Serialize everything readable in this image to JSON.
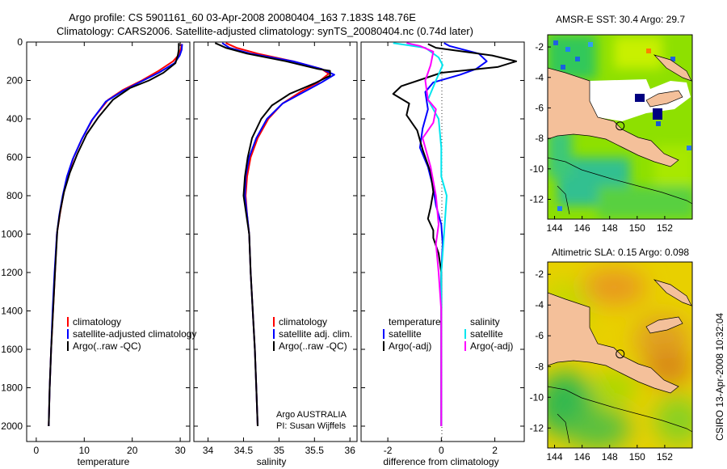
{
  "header": {
    "line1": "Argo profile: CS 5901161_60 03-Apr-2008 20080404_163 7.183S 148.76E",
    "line2": "Climatology: CARS2006. Satellite-adjusted climatology: synTS_20080404.nc (0.74d later)"
  },
  "credit": "CSIRO 13-Apr-2008 10:32:04",
  "colors": {
    "climatology": "#ff0000",
    "satellite": "#0000ff",
    "argo": "#000000",
    "sal_satellite": "#00e5ee",
    "sal_argo": "#ff00ff",
    "land": "#f4c09a"
  },
  "chart_data": [
    {
      "type": "line",
      "id": "temperature",
      "xlabel": "temperature",
      "xlim": [
        -2,
        32
      ],
      "ylim": [
        2080,
        0
      ],
      "xticks": [
        0,
        10,
        20,
        30
      ],
      "yticks": [
        0,
        200,
        400,
        600,
        800,
        1000,
        1200,
        1400,
        1600,
        1800,
        2000
      ],
      "legend": [
        "climatology",
        "satellite-adjusted climatology",
        "Argo(..raw -QC)"
      ],
      "series": [
        {
          "name": "climatology",
          "color": "#ff0000",
          "points": [
            [
              30.3,
              10
            ],
            [
              30.1,
              40
            ],
            [
              29.6,
              70
            ],
            [
              28.5,
              100
            ],
            [
              25.5,
              150
            ],
            [
              22,
              200
            ],
            [
              18,
              250
            ],
            [
              15,
              300
            ],
            [
              11.8,
              400
            ],
            [
              9.6,
              500
            ],
            [
              7.8,
              600
            ],
            [
              6.5,
              700
            ],
            [
              5.6,
              800
            ],
            [
              4.9,
              900
            ],
            [
              4.3,
              1000
            ],
            [
              3.9,
              1200
            ],
            [
              3.5,
              1400
            ],
            [
              3.1,
              1600
            ],
            [
              2.8,
              1800
            ],
            [
              2.6,
              2000
            ]
          ]
        },
        {
          "name": "satellite-adjusted climatology",
          "color": "#0000ff",
          "points": [
            [
              30.4,
              10
            ],
            [
              30.3,
              40
            ],
            [
              29.9,
              70
            ],
            [
              28.8,
              110
            ],
            [
              25.5,
              160
            ],
            [
              21.5,
              210
            ],
            [
              18,
              255
            ],
            [
              14.5,
              310
            ],
            [
              11.5,
              410
            ],
            [
              9.4,
              510
            ],
            [
              7.6,
              610
            ],
            [
              6.4,
              700
            ],
            [
              5.5,
              800
            ],
            [
              4.8,
              900
            ],
            [
              4.3,
              1000
            ],
            [
              3.8,
              1200
            ],
            [
              3.4,
              1400
            ],
            [
              3.1,
              1600
            ],
            [
              2.8,
              1800
            ],
            [
              2.6,
              2000
            ]
          ]
        },
        {
          "name": "Argo(..raw -QC)",
          "color": "#000000",
          "points": [
            [
              29.7,
              5
            ],
            [
              29.7,
              40
            ],
            [
              29.5,
              70
            ],
            [
              29,
              110
            ],
            [
              26.5,
              160
            ],
            [
              23.5,
              200
            ],
            [
              19.5,
              240
            ],
            [
              16,
              300
            ],
            [
              13,
              390
            ],
            [
              10.5,
              480
            ],
            [
              8.6,
              580
            ],
            [
              7,
              680
            ],
            [
              5.8,
              780
            ],
            [
              5,
              880
            ],
            [
              4.4,
              980
            ],
            [
              3.9,
              1200
            ],
            [
              3.5,
              1400
            ],
            [
              3.1,
              1600
            ],
            [
              2.8,
              1800
            ],
            [
              2.6,
              2000
            ]
          ]
        }
      ]
    },
    {
      "type": "line",
      "id": "salinity",
      "xlabel": "salinity",
      "xlim": [
        33.8,
        36.1
      ],
      "ylim": [
        2080,
        0
      ],
      "xticks": [
        34,
        34.5,
        35,
        35.5,
        36
      ],
      "legend": [
        "climatology",
        "satellite adj. clim.",
        "Argo(..raw -QC)"
      ],
      "annotations": [
        "Argo AUSTRALIA",
        "PI: Susan Wijffels"
      ],
      "series": [
        {
          "name": "climatology",
          "color": "#ff0000",
          "points": [
            [
              34.25,
              5
            ],
            [
              34.4,
              30
            ],
            [
              34.7,
              60
            ],
            [
              35.2,
              100
            ],
            [
              35.6,
              140
            ],
            [
              35.7,
              165
            ],
            [
              35.55,
              210
            ],
            [
              35.3,
              260
            ],
            [
              35.05,
              320
            ],
            [
              34.85,
              400
            ],
            [
              34.7,
              500
            ],
            [
              34.6,
              600
            ],
            [
              34.55,
              700
            ],
            [
              34.53,
              800
            ],
            [
              34.55,
              900
            ],
            [
              34.58,
              1000
            ],
            [
              34.6,
              1200
            ],
            [
              34.63,
              1400
            ],
            [
              34.66,
              1600
            ],
            [
              34.68,
              1800
            ],
            [
              34.7,
              2000
            ]
          ]
        },
        {
          "name": "satellite adj. clim.",
          "color": "#0000ff",
          "points": [
            [
              34.2,
              5
            ],
            [
              34.3,
              30
            ],
            [
              34.6,
              60
            ],
            [
              35.2,
              100
            ],
            [
              35.6,
              140
            ],
            [
              35.78,
              170
            ],
            [
              35.6,
              210
            ],
            [
              35.35,
              260
            ],
            [
              35.05,
              320
            ],
            [
              34.83,
              400
            ],
            [
              34.68,
              500
            ],
            [
              34.58,
              600
            ],
            [
              34.53,
              700
            ],
            [
              34.52,
              800
            ],
            [
              34.55,
              900
            ],
            [
              34.58,
              1000
            ],
            [
              34.6,
              1200
            ],
            [
              34.63,
              1400
            ],
            [
              34.66,
              1600
            ],
            [
              34.68,
              1800
            ],
            [
              34.7,
              2000
            ]
          ]
        },
        {
          "name": "Argo(..raw -QC)",
          "color": "#000000",
          "points": [
            [
              34.1,
              5
            ],
            [
              34.25,
              30
            ],
            [
              34.55,
              60
            ],
            [
              35.1,
              100
            ],
            [
              35.55,
              140
            ],
            [
              35.72,
              150
            ],
            [
              35.72,
              175
            ],
            [
              35.5,
              215
            ],
            [
              35.15,
              270
            ],
            [
              34.9,
              330
            ],
            [
              34.75,
              400
            ],
            [
              34.62,
              500
            ],
            [
              34.56,
              600
            ],
            [
              34.52,
              700
            ],
            [
              34.5,
              800
            ],
            [
              34.54,
              900
            ],
            [
              34.58,
              1000
            ],
            [
              34.6,
              1200
            ],
            [
              34.63,
              1400
            ],
            [
              34.66,
              1600
            ],
            [
              34.68,
              1800
            ],
            [
              34.7,
              2000
            ]
          ]
        }
      ]
    },
    {
      "type": "line",
      "id": "difference",
      "xlabel": "difference from climatology",
      "xlim": [
        -3,
        3.1
      ],
      "ylim": [
        2080,
        0
      ],
      "xticks": [
        -2,
        0,
        2
      ],
      "legend_temperature_title": "temperature",
      "legend_salinity_title": "salinity",
      "legend": [
        "satellite",
        "Argo(-adj)",
        "satellite",
        "Argo(-adj)"
      ],
      "series": [
        {
          "name": "temperature satellite",
          "color": "#0000ff",
          "points": [
            [
              0.1,
              5
            ],
            [
              0.3,
              20
            ],
            [
              1.4,
              60
            ],
            [
              1.7,
              100
            ],
            [
              1.3,
              140
            ],
            [
              0.7,
              170
            ],
            [
              -0.3,
              210
            ],
            [
              -0.6,
              260
            ],
            [
              -0.5,
              350
            ],
            [
              -0.7,
              450
            ],
            [
              -0.8,
              550
            ],
            [
              -0.5,
              650
            ],
            [
              -0.3,
              760
            ],
            [
              -0.2,
              850
            ],
            [
              0,
              950
            ],
            [
              0.05,
              1050
            ],
            [
              0,
              1200
            ],
            [
              0,
              1500
            ],
            [
              0,
              2000
            ]
          ]
        },
        {
          "name": "temperature Argo(-adj)",
          "color": "#000000",
          "points": [
            [
              -0.5,
              10
            ],
            [
              -0.2,
              30
            ],
            [
              1.9,
              70
            ],
            [
              2.8,
              100
            ],
            [
              2.1,
              130
            ],
            [
              0,
              160
            ],
            [
              -1.5,
              230
            ],
            [
              -1.8,
              270
            ],
            [
              -1.2,
              320
            ],
            [
              -1.3,
              380
            ],
            [
              -0.9,
              460
            ],
            [
              -0.7,
              560
            ],
            [
              -0.4,
              680
            ],
            [
              -0.3,
              780
            ],
            [
              -0.4,
              860
            ],
            [
              -0.5,
              920
            ],
            [
              -0.3,
              980
            ],
            [
              -0.3,
              1020
            ],
            [
              -0.1,
              1100
            ],
            [
              0,
              1200
            ],
            [
              0,
              1500
            ],
            [
              0,
              2000
            ]
          ]
        },
        {
          "name": "salinity satellite",
          "color": "#00e5ee",
          "points": [
            [
              -1.8,
              5
            ],
            [
              -0.6,
              30
            ],
            [
              -0.1,
              80
            ],
            [
              0.05,
              120
            ],
            [
              -0.2,
              200
            ],
            [
              -0.5,
              300
            ],
            [
              -0.1,
              400
            ],
            [
              0,
              550
            ],
            [
              0,
              700
            ],
            [
              0.2,
              800
            ],
            [
              0.1,
              1000
            ],
            [
              0,
              1200
            ],
            [
              0,
              1500
            ],
            [
              0,
              2000
            ]
          ]
        },
        {
          "name": "salinity Argo(-adj)",
          "color": "#ff00ff",
          "points": [
            [
              -1.3,
              5
            ],
            [
              -0.8,
              20
            ],
            [
              -0.3,
              50
            ],
            [
              -0.4,
              120
            ],
            [
              -0.6,
              200
            ],
            [
              -0.5,
              300
            ],
            [
              -0.2,
              350
            ],
            [
              -0.3,
              420
            ],
            [
              -0.7,
              500
            ],
            [
              -0.5,
              600
            ],
            [
              -0.4,
              650
            ],
            [
              -0.2,
              800
            ],
            [
              -0.1,
              950
            ],
            [
              -0.2,
              1050
            ],
            [
              -0.1,
              1200
            ],
            [
              0,
              1400
            ],
            [
              0,
              2000
            ]
          ]
        }
      ]
    },
    {
      "type": "heatmap",
      "id": "sst-map",
      "title": "AMSR-E SST: 30.4  Argo: 29.7",
      "xlim": [
        143.5,
        154
      ],
      "ylim": [
        -13.3,
        -1.2
      ],
      "xticks": [
        144,
        146,
        148,
        150,
        152
      ],
      "yticks": [
        -2,
        -4,
        -6,
        -8,
        -10,
        -12
      ],
      "argo_position": [
        148.76,
        -7.183
      ]
    },
    {
      "type": "heatmap",
      "id": "sla-map",
      "title": "Altimetric SLA: 0.15  Argo: 0.098",
      "xlim": [
        143.5,
        154
      ],
      "ylim": [
        -13.3,
        -1.2
      ],
      "xticks": [
        144,
        146,
        148,
        150,
        152
      ],
      "yticks": [
        -2,
        -4,
        -6,
        -8,
        -10,
        -12
      ],
      "argo_position": [
        148.76,
        -7.183
      ]
    }
  ]
}
